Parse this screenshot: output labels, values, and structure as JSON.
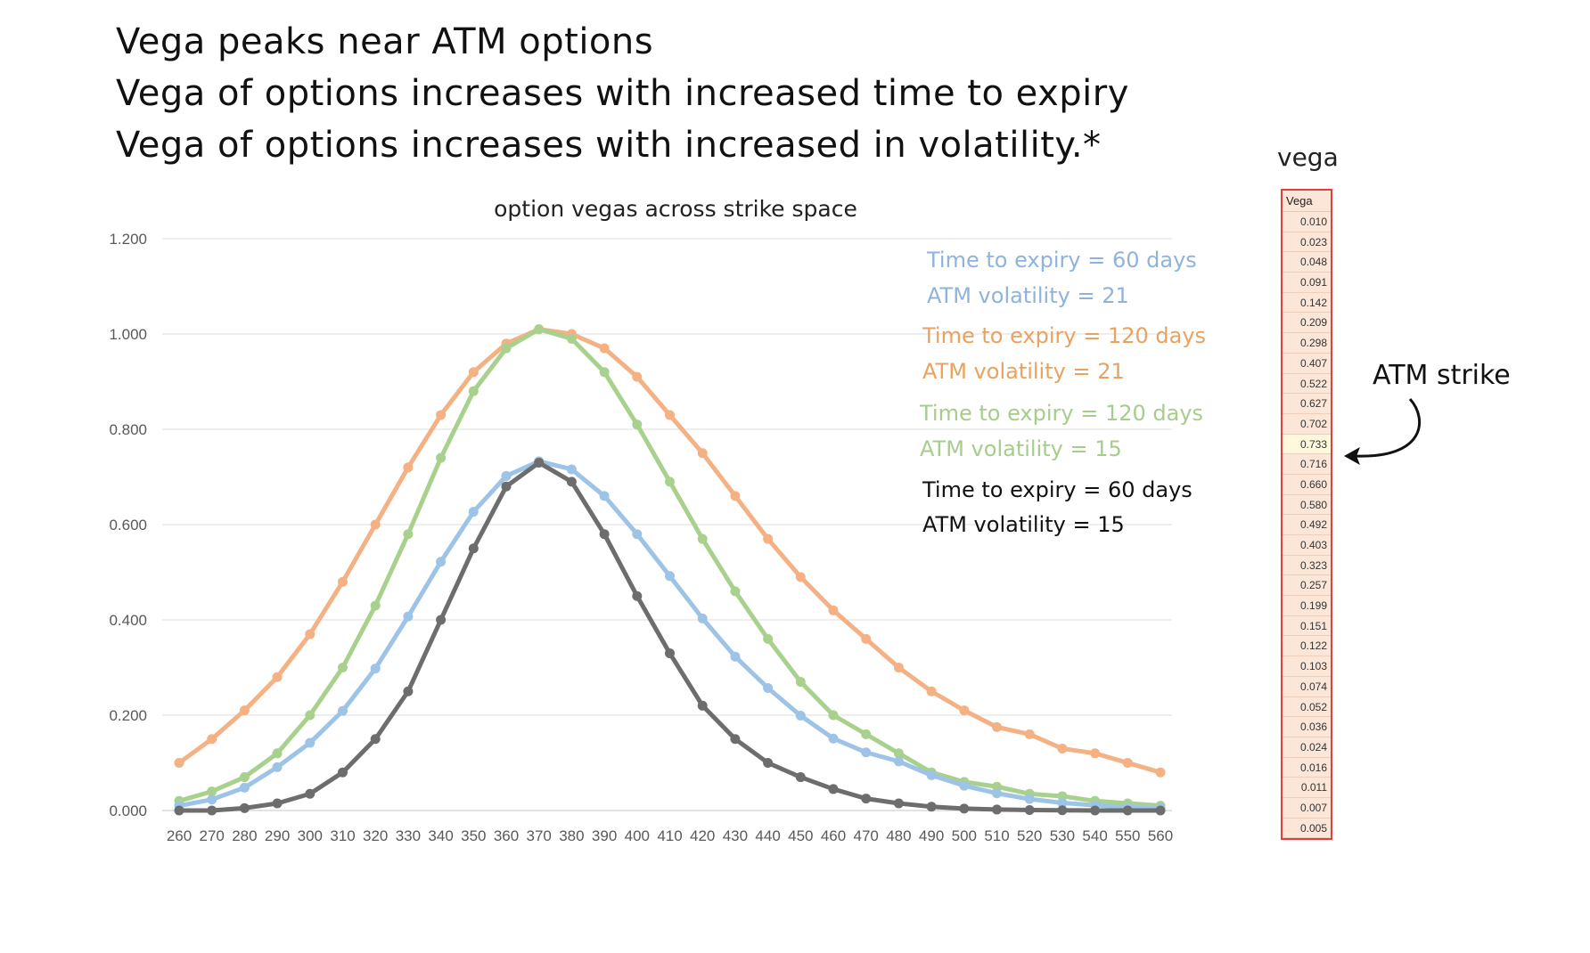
{
  "headlines": [
    "Vega peaks near ATM options",
    "Vega of options increases with increased time to expiry",
    "Vega of options increases with increased in volatility.*"
  ],
  "chart_data": {
    "type": "line",
    "title": "option vegas across strike space",
    "xlabel": "",
    "ylabel": "",
    "ylim": [
      0,
      1.2
    ],
    "yticks": [
      "0.000",
      "0.200",
      "0.400",
      "0.600",
      "0.800",
      "1.000",
      "1.200"
    ],
    "grid": true,
    "categories": [
      "260",
      "270",
      "280",
      "290",
      "300",
      "310",
      "320",
      "330",
      "340",
      "350",
      "360",
      "370",
      "380",
      "390",
      "400",
      "410",
      "420",
      "430",
      "440",
      "450",
      "460",
      "470",
      "480",
      "490",
      "500",
      "510",
      "520",
      "530",
      "540",
      "550",
      "560"
    ],
    "series": [
      {
        "color": "#f4b183",
        "values": [
          0.1,
          0.15,
          0.21,
          0.28,
          0.37,
          0.48,
          0.6,
          0.72,
          0.83,
          0.92,
          0.98,
          1.01,
          1.0,
          0.97,
          0.91,
          0.83,
          0.75,
          0.66,
          0.57,
          0.49,
          0.42,
          0.36,
          0.3,
          0.25,
          0.21,
          0.175,
          0.16,
          0.13,
          0.12,
          0.1,
          0.08
        ]
      },
      {
        "color": "#a9d18e",
        "values": [
          0.02,
          0.04,
          0.07,
          0.12,
          0.2,
          0.3,
          0.43,
          0.58,
          0.74,
          0.88,
          0.97,
          1.01,
          0.99,
          0.92,
          0.81,
          0.69,
          0.57,
          0.46,
          0.36,
          0.27,
          0.2,
          0.16,
          0.12,
          0.08,
          0.06,
          0.05,
          0.035,
          0.03,
          0.02,
          0.015,
          0.01
        ]
      },
      {
        "color": "#9dc3e6",
        "values": [
          0.01,
          0.023,
          0.048,
          0.091,
          0.142,
          0.209,
          0.298,
          0.407,
          0.522,
          0.627,
          0.702,
          0.733,
          0.716,
          0.66,
          0.58,
          0.492,
          0.403,
          0.323,
          0.257,
          0.199,
          0.151,
          0.122,
          0.103,
          0.074,
          0.052,
          0.036,
          0.024,
          0.016,
          0.011,
          0.007,
          0.005
        ]
      },
      {
        "color": "#6d6d6d",
        "values": [
          0.0,
          0.0,
          0.005,
          0.015,
          0.035,
          0.08,
          0.15,
          0.25,
          0.4,
          0.55,
          0.68,
          0.73,
          0.69,
          0.58,
          0.45,
          0.33,
          0.22,
          0.15,
          0.1,
          0.07,
          0.045,
          0.025,
          0.015,
          0.008,
          0.004,
          0.002,
          0.001,
          0.0005,
          0.0,
          0.0,
          0.0
        ]
      }
    ],
    "annotations": [
      {
        "text": "Time to expiry = 60 days",
        "color": "#8fb3dd"
      },
      {
        "text": "ATM volatility = 21",
        "color": "#8fb3dd"
      },
      {
        "text": "Time to expiry = 120 days",
        "color": "#e9a25f"
      },
      {
        "text": "ATM volatility = 21",
        "color": "#e9a25f"
      },
      {
        "text": "Time to expiry = 120 days",
        "color": "#a6cd8c"
      },
      {
        "text": "ATM volatility = 15",
        "color": "#a6cd8c"
      },
      {
        "text": "Time to expiry = 60 days",
        "color": "#111111"
      },
      {
        "text": "ATM volatility = 15",
        "color": "#111111"
      }
    ]
  },
  "vega_panel": {
    "title": "vega",
    "header": "Vega",
    "values": [
      "0.010",
      "0.023",
      "0.048",
      "0.091",
      "0.142",
      "0.209",
      "0.298",
      "0.407",
      "0.522",
      "0.627",
      "0.702",
      "0.733",
      "0.716",
      "0.660",
      "0.580",
      "0.492",
      "0.403",
      "0.323",
      "0.257",
      "0.199",
      "0.151",
      "0.122",
      "0.103",
      "0.074",
      "0.052",
      "0.036",
      "0.024",
      "0.016",
      "0.011",
      "0.007",
      "0.005"
    ],
    "highlight_value": "0.733",
    "border_color": "#e0403e"
  },
  "atm_label": "ATM strike"
}
